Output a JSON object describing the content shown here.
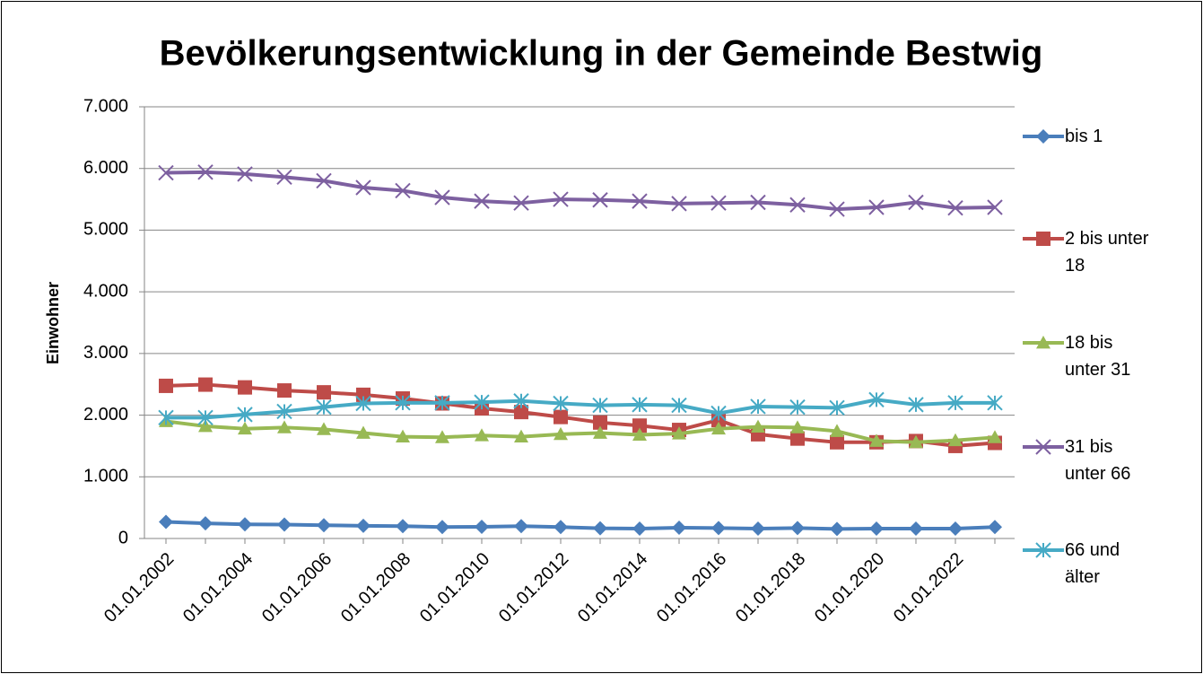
{
  "chart_data": {
    "type": "line",
    "title": "Bevölkerungsentwicklung in der Gemeinde Bestwig",
    "y_label": "Einwohner",
    "categories": [
      "01.01.2002",
      null,
      "01.01.2004",
      null,
      "01.01.2006",
      null,
      "01.01.2008",
      null,
      "01.01.2010",
      null,
      "01.01.2012",
      null,
      "01.01.2014",
      null,
      "01.01.2016",
      null,
      "01.01.2018",
      null,
      "01.01.2020",
      null,
      "01.01.2022",
      null
    ],
    "series": [
      {
        "name": "bis 1",
        "color": "#4a7ebb",
        "marker": "diamond",
        "values": [
          270,
          245,
          230,
          225,
          215,
          205,
          200,
          185,
          190,
          200,
          185,
          165,
          160,
          175,
          170,
          160,
          170,
          155,
          160,
          160,
          160,
          185
        ]
      },
      {
        "name": "2 bis unter 18",
        "color": "#be4b48",
        "marker": "square",
        "values": [
          2475,
          2495,
          2450,
          2400,
          2370,
          2330,
          2270,
          2190,
          2110,
          2050,
          1970,
          1880,
          1830,
          1760,
          1920,
          1690,
          1620,
          1560,
          1560,
          1580,
          1500,
          1550
        ]
      },
      {
        "name": "18 bis unter 31",
        "color": "#98b954",
        "marker": "triangle",
        "values": [
          1900,
          1820,
          1780,
          1800,
          1770,
          1710,
          1650,
          1640,
          1670,
          1650,
          1690,
          1710,
          1680,
          1700,
          1780,
          1810,
          1800,
          1740,
          1580,
          1560,
          1590,
          1640
        ]
      },
      {
        "name": "31 bis unter 66",
        "color": "#7d60a0",
        "marker": "x",
        "values": [
          5930,
          5940,
          5910,
          5860,
          5800,
          5690,
          5640,
          5530,
          5470,
          5440,
          5500,
          5490,
          5470,
          5430,
          5440,
          5450,
          5410,
          5340,
          5370,
          5450,
          5360,
          5370
        ]
      },
      {
        "name": "66 und älter",
        "color": "#46aac5",
        "marker": "star",
        "values": [
          1960,
          1960,
          2010,
          2060,
          2130,
          2190,
          2200,
          2200,
          2210,
          2230,
          2190,
          2160,
          2170,
          2160,
          2030,
          2140,
          2130,
          2120,
          2250,
          2170,
          2200,
          2200
        ]
      }
    ],
    "ylim": [
      0,
      7000
    ],
    "yticks": [
      0,
      {
        "value": 1000,
        "label": "1.000"
      },
      {
        "value": 2000,
        "label": "2.000"
      },
      {
        "value": 3000,
        "label": "3.000"
      },
      {
        "value": 4000,
        "label": "4.000"
      },
      {
        "value": 5000,
        "label": "5.000"
      },
      {
        "value": 6000,
        "label": "6.000"
      },
      {
        "value": 7000,
        "label": "7.000"
      }
    ],
    "grid": true,
    "legend": "right"
  }
}
